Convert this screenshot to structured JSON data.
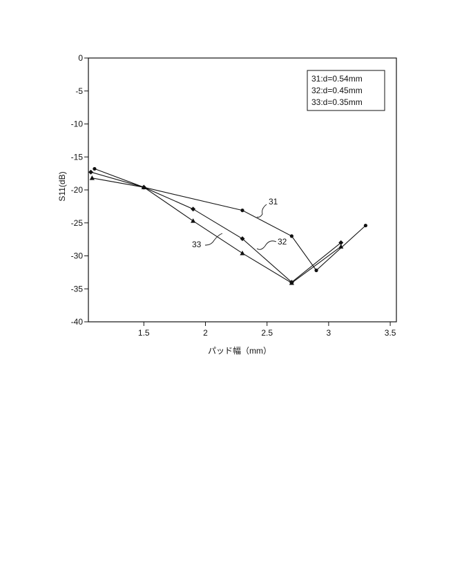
{
  "chart_data": {
    "type": "line",
    "title": "",
    "xlabel": "パッド幅（mm）",
    "ylabel": "S11(dB)",
    "xlim": [
      1.05,
      3.55
    ],
    "ylim": [
      -40,
      0
    ],
    "xticks": [
      {
        "value": 1.5,
        "label": "1.5"
      },
      {
        "value": 2,
        "label": "2"
      },
      {
        "value": 2.5,
        "label": "2.5"
      },
      {
        "value": 3,
        "label": "3"
      },
      {
        "value": 3.5,
        "label": "3.5"
      }
    ],
    "yticks": [
      {
        "value": 0,
        "label": "0"
      },
      {
        "value": -5,
        "label": "-5"
      },
      {
        "value": -10,
        "label": "-10"
      },
      {
        "value": -15,
        "label": "-15"
      },
      {
        "value": -20,
        "label": "-20"
      },
      {
        "value": -25,
        "label": "-25"
      },
      {
        "value": -30,
        "label": "-30"
      },
      {
        "value": -35,
        "label": "-35"
      },
      {
        "value": -40,
        "label": "-40"
      }
    ],
    "grid": false,
    "legend_position": "top-right",
    "series": [
      {
        "name": "31:d=0.54mm",
        "callout": "31",
        "marker": "circle",
        "x": [
          1.1,
          1.5,
          2.3,
          2.7,
          2.9,
          3.3
        ],
        "y": [
          -16.8,
          -19.6,
          -23.1,
          -27.0,
          -32.2,
          -25.4
        ]
      },
      {
        "name": "32:d=0.45mm",
        "callout": "32",
        "marker": "diamond",
        "x": [
          1.07,
          1.5,
          1.9,
          2.3,
          2.7,
          3.1
        ],
        "y": [
          -17.3,
          -19.6,
          -22.9,
          -27.4,
          -34.0,
          -28.0
        ]
      },
      {
        "name": "33:d=0.35mm",
        "callout": "33",
        "marker": "triangle",
        "x": [
          1.08,
          1.5,
          1.9,
          2.3,
          2.7,
          3.1
        ],
        "y": [
          -18.2,
          -19.6,
          -24.7,
          -29.6,
          -34.1,
          -28.6
        ]
      }
    ]
  }
}
